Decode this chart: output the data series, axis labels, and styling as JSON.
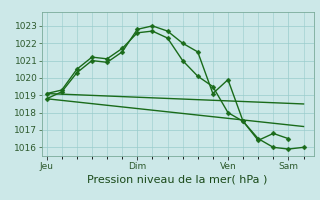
{
  "xlabel": "Pression niveau de la mer( hPa )",
  "bg_color": "#cce8e8",
  "grid_color": "#99cccc",
  "line_color": "#1a6b1a",
  "yticks": [
    1016,
    1017,
    1018,
    1019,
    1020,
    1021,
    1022,
    1023
  ],
  "ylim": [
    1015.5,
    1023.8
  ],
  "xtick_labels": [
    "Jeu",
    "Dim",
    "Ven",
    "Sam"
  ],
  "xtick_positions": [
    0,
    36,
    72,
    96
  ],
  "xlim": [
    -2,
    106
  ],
  "series1_x": [
    0,
    6,
    12,
    18,
    24,
    30,
    36,
    42,
    48,
    54,
    60,
    66,
    72,
    78,
    84,
    90,
    96
  ],
  "series1_y": [
    1018.8,
    1019.2,
    1020.3,
    1021.0,
    1020.9,
    1021.5,
    1022.8,
    1023.0,
    1022.7,
    1022.0,
    1021.5,
    1019.1,
    1019.9,
    1017.5,
    1016.4,
    1016.8,
    1016.5
  ],
  "series2_x": [
    0,
    6,
    12,
    18,
    24,
    30,
    36,
    42,
    48,
    54,
    60,
    66,
    72,
    78,
    84,
    90,
    96,
    102
  ],
  "series2_y": [
    1019.1,
    1019.3,
    1020.5,
    1021.2,
    1021.1,
    1021.7,
    1022.6,
    1022.7,
    1022.3,
    1021.0,
    1020.1,
    1019.5,
    1018.0,
    1017.5,
    1016.5,
    1016.0,
    1015.9,
    1016.0
  ],
  "trend1_x": [
    0,
    102
  ],
  "trend1_y": [
    1019.1,
    1018.5
  ],
  "trend2_x": [
    0,
    102
  ],
  "trend2_y": [
    1018.8,
    1017.2
  ],
  "marker_size": 2.5,
  "linewidth": 1.0,
  "tick_fontsize": 6.5,
  "xlabel_fontsize": 8
}
